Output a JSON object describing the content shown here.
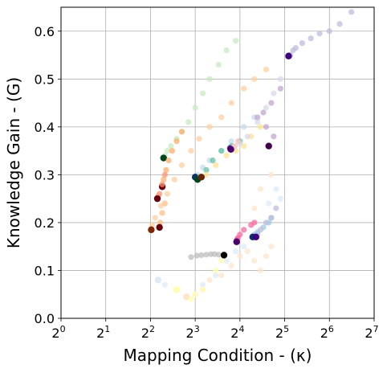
{
  "chart_data": {
    "type": "scatter",
    "xlabel": "Mapping Condition - (κ)",
    "ylabel": "Knowledge Gain - (G)",
    "x_scale": "log2",
    "xlim": [
      1,
      128
    ],
    "ylim": [
      0.0,
      0.65
    ],
    "grid": true,
    "x_ticks": [
      {
        "value": 1,
        "base": "2",
        "exp": "0"
      },
      {
        "value": 2,
        "base": "2",
        "exp": "1"
      },
      {
        "value": 4,
        "base": "2",
        "exp": "2"
      },
      {
        "value": 8,
        "base": "2",
        "exp": "3"
      },
      {
        "value": 16,
        "base": "2",
        "exp": "4"
      },
      {
        "value": 32,
        "base": "2",
        "exp": "5"
      },
      {
        "value": 64,
        "base": "2",
        "exp": "6"
      },
      {
        "value": 128,
        "base": "2",
        "exp": "7"
      }
    ],
    "y_ticks": [
      {
        "value": 0.0,
        "label": "0.0"
      },
      {
        "value": 0.1,
        "label": "0.1"
      },
      {
        "value": 0.2,
        "label": "0.2"
      },
      {
        "value": 0.3,
        "label": "0.3"
      },
      {
        "value": 0.4,
        "label": "0.4"
      },
      {
        "value": 0.5,
        "label": "0.5"
      },
      {
        "value": 0.6,
        "label": "0.6"
      }
    ],
    "series": [
      {
        "color_light": "#bcbddc",
        "color_dark": "#3f007d",
        "points": [
          [
            90,
            0.64
          ],
          [
            75,
            0.615
          ],
          [
            64,
            0.6
          ],
          [
            55,
            0.595
          ],
          [
            48,
            0.585
          ],
          [
            42,
            0.575
          ],
          [
            38,
            0.565
          ],
          [
            36.5,
            0.56
          ],
          [
            35,
            0.55
          ],
          [
            34,
            0.548
          ]
        ]
      },
      {
        "color_light": "#c7e9c0",
        "color_dark": "#00441b",
        "points": [
          [
            15,
            0.58
          ],
          [
            13,
            0.56
          ],
          [
            11.5,
            0.53
          ],
          [
            10,
            0.5
          ],
          [
            9,
            0.47
          ],
          [
            8,
            0.44
          ],
          [
            7.2,
            0.41
          ],
          [
            6.5,
            0.39
          ],
          [
            6,
            0.375
          ],
          [
            5.5,
            0.36
          ],
          [
            5.2,
            0.35
          ],
          [
            5,
            0.34
          ],
          [
            4.9,
            0.335
          ]
        ]
      },
      {
        "color_light": "#fdd0a2",
        "color_dark": "#7f2704",
        "points": [
          [
            24,
            0.52
          ],
          [
            20,
            0.5
          ],
          [
            17,
            0.48
          ],
          [
            14,
            0.45
          ],
          [
            12,
            0.42
          ],
          [
            10,
            0.4
          ],
          [
            8.5,
            0.375
          ],
          [
            7.5,
            0.35
          ],
          [
            6.5,
            0.32
          ],
          [
            5.8,
            0.29
          ],
          [
            5.2,
            0.26
          ],
          [
            4.7,
            0.235
          ],
          [
            4.3,
            0.21
          ],
          [
            4.1,
            0.195
          ],
          [
            4.05,
            0.185
          ]
        ]
      },
      {
        "color_light": "#fdae6b",
        "color_dark": "#67000d",
        "points": [
          [
            6.5,
            0.39
          ],
          [
            6,
            0.37
          ],
          [
            5.6,
            0.35
          ],
          [
            5.3,
            0.33
          ],
          [
            5.1,
            0.31
          ],
          [
            4.9,
            0.29
          ],
          [
            4.8,
            0.275
          ]
        ]
      },
      {
        "color_light": "#fc9272",
        "color_dark": "#67000d",
        "points": [
          [
            5,
            0.3
          ],
          [
            4.8,
            0.28
          ],
          [
            4.6,
            0.26
          ],
          [
            4.5,
            0.255
          ],
          [
            4.45,
            0.25
          ]
        ]
      },
      {
        "color_light": "#fdbe85",
        "color_dark": "#67000d",
        "points": [
          [
            5,
            0.24
          ],
          [
            4.8,
            0.22
          ],
          [
            4.65,
            0.2
          ],
          [
            4.6,
            0.19
          ]
        ]
      },
      {
        "color_light": "#c6dbef",
        "color_dark": "#08306b",
        "points": [
          [
            20,
            0.42
          ],
          [
            17,
            0.4
          ],
          [
            14,
            0.37
          ],
          [
            12,
            0.35
          ],
          [
            10,
            0.33
          ],
          [
            9,
            0.315
          ],
          [
            8.3,
            0.3
          ],
          [
            8,
            0.295
          ]
        ]
      },
      {
        "color_light": "#66c2a4",
        "color_dark": "#00441b",
        "points": [
          [
            16,
            0.37
          ],
          [
            14,
            0.36
          ],
          [
            12,
            0.35
          ],
          [
            10.5,
            0.33
          ],
          [
            9.5,
            0.31
          ],
          [
            8.6,
            0.295
          ],
          [
            8.3,
            0.29
          ]
        ]
      },
      {
        "color_light": "#fee391",
        "color_dark": "#662506",
        "points": [
          [
            22,
            0.4
          ],
          [
            19,
            0.38
          ],
          [
            17,
            0.36
          ],
          [
            15,
            0.35
          ],
          [
            13,
            0.34
          ],
          [
            11,
            0.32
          ],
          [
            9.5,
            0.3
          ],
          [
            8.8,
            0.295
          ]
        ]
      },
      {
        "color_light": "#dadaeb",
        "color_dark": "#54278f",
        "points": [
          [
            30,
            0.5
          ],
          [
            27,
            0.47
          ],
          [
            24,
            0.44
          ],
          [
            21,
            0.41
          ],
          [
            18,
            0.38
          ],
          [
            16,
            0.365
          ],
          [
            14.5,
            0.358
          ],
          [
            13.8,
            0.355
          ]
        ]
      },
      {
        "color_light": "#fcc5c0",
        "color_dark": "#49006a",
        "points": [
          [
            15.5,
            0.37
          ],
          [
            14.8,
            0.36
          ],
          [
            14.2,
            0.355
          ],
          [
            13.9,
            0.353
          ]
        ]
      },
      {
        "color_light": "#c2a5cf",
        "color_dark": "#40004b",
        "points": [
          [
            30,
            0.48
          ],
          [
            26,
            0.45
          ],
          [
            23,
            0.43
          ],
          [
            21,
            0.42
          ],
          [
            24,
            0.4
          ],
          [
            27,
            0.38
          ],
          [
            25,
            0.36
          ]
        ]
      },
      {
        "color_light": "#f768a1",
        "color_dark": "#49006a",
        "points": [
          [
            20,
            0.2
          ],
          [
            19,
            0.195
          ],
          [
            17,
            0.185
          ],
          [
            16,
            0.175
          ],
          [
            15.5,
            0.168
          ],
          [
            15.3,
            0.165
          ],
          [
            15.2,
            0.16
          ]
        ]
      },
      {
        "color_light": "#9ecae1",
        "color_dark": "#08306b",
        "points": [
          [
            26,
            0.21
          ],
          [
            25,
            0.2
          ],
          [
            23,
            0.19
          ],
          [
            21,
            0.18
          ],
          [
            20,
            0.175
          ],
          [
            19.5,
            0.17
          ]
        ]
      },
      {
        "color_light": "#bcbddc",
        "color_dark": "#3f007d",
        "points": [
          [
            28,
            0.23
          ],
          [
            26,
            0.21
          ],
          [
            24,
            0.2
          ],
          [
            22,
            0.185
          ],
          [
            21,
            0.175
          ],
          [
            20.5,
            0.17
          ]
        ]
      },
      {
        "color_light": "#bdbdbd",
        "color_dark": "#000000",
        "points": [
          [
            7.5,
            0.128
          ],
          [
            8.2,
            0.131
          ],
          [
            8.8,
            0.132
          ],
          [
            9.5,
            0.133
          ],
          [
            10.2,
            0.134
          ],
          [
            10.8,
            0.134
          ],
          [
            11.5,
            0.133
          ],
          [
            12.5,
            0.132
          ]
        ]
      },
      {
        "color_light": "#fee6ce",
        "color_dark": "#fee6ce",
        "points": [
          [
            10,
            0.08
          ],
          [
            12,
            0.09
          ],
          [
            14,
            0.11
          ],
          [
            16,
            0.13
          ],
          [
            18,
            0.14
          ],
          [
            20,
            0.12
          ],
          [
            22,
            0.1
          ],
          [
            24,
            0.13
          ],
          [
            26,
            0.15
          ],
          [
            20,
            0.23
          ],
          [
            22,
            0.27
          ],
          [
            26,
            0.3
          ],
          [
            9,
            0.06
          ],
          [
            8,
            0.05
          ],
          [
            7,
            0.045
          ]
        ]
      },
      {
        "color_light": "#deebf7",
        "color_dark": "#deebf7",
        "points": [
          [
            9,
            0.07
          ],
          [
            11,
            0.09
          ],
          [
            13,
            0.12
          ],
          [
            15,
            0.14
          ],
          [
            17,
            0.15
          ],
          [
            25,
            0.24
          ],
          [
            28,
            0.27
          ],
          [
            30,
            0.25
          ],
          [
            5,
            0.07
          ],
          [
            4.5,
            0.08
          ]
        ]
      },
      {
        "color_light": "#ffffb2",
        "color_dark": "#ffffb2",
        "points": [
          [
            7.5,
            0.04
          ],
          [
            8,
            0.05
          ],
          [
            9,
            0.06
          ],
          [
            11,
            0.1
          ],
          [
            12,
            0.12
          ],
          [
            6,
            0.06
          ]
        ]
      }
    ]
  }
}
